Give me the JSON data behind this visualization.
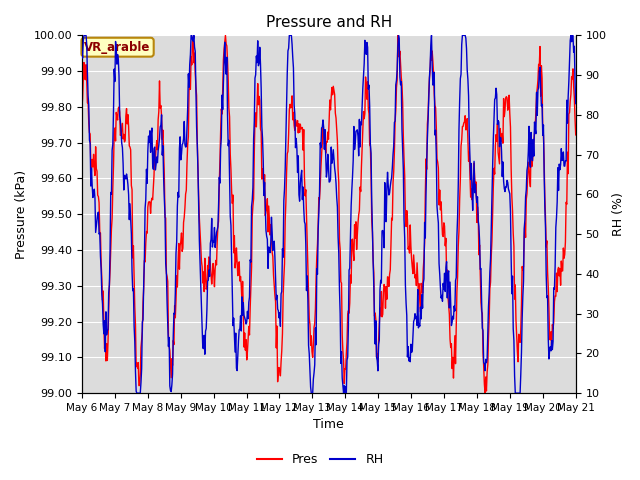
{
  "title": "Pressure and RH",
  "xlabel": "Time",
  "ylabel_left": "Pressure (kPa)",
  "ylabel_right": "RH (%)",
  "pres_ylim": [
    99.0,
    100.0
  ],
  "rh_ylim": [
    10,
    100
  ],
  "pres_yticks": [
    99.0,
    99.1,
    99.2,
    99.3,
    99.4,
    99.5,
    99.6,
    99.7,
    99.8,
    99.9,
    100.0
  ],
  "rh_yticks": [
    10,
    20,
    30,
    40,
    50,
    60,
    70,
    80,
    90,
    100
  ],
  "xtick_labels": [
    "May 6",
    "May 7",
    "May 8",
    "May 9",
    "May 10",
    "May 11",
    "May 12",
    "May 13",
    "May 14",
    "May 15",
    "May 16",
    "May 17",
    "May 18",
    "May 19",
    "May 20",
    "May 21"
  ],
  "pres_color": "#FF0000",
  "rh_color": "#0000CC",
  "bg_color": "#DCDCDC",
  "annotation_text": "VR_arable",
  "annotation_bg": "#FFFFC0",
  "annotation_border": "#B8860B",
  "legend_pres": "Pres",
  "legend_rh": "RH",
  "title_fontsize": 11,
  "axis_label_fontsize": 9,
  "tick_fontsize": 8
}
